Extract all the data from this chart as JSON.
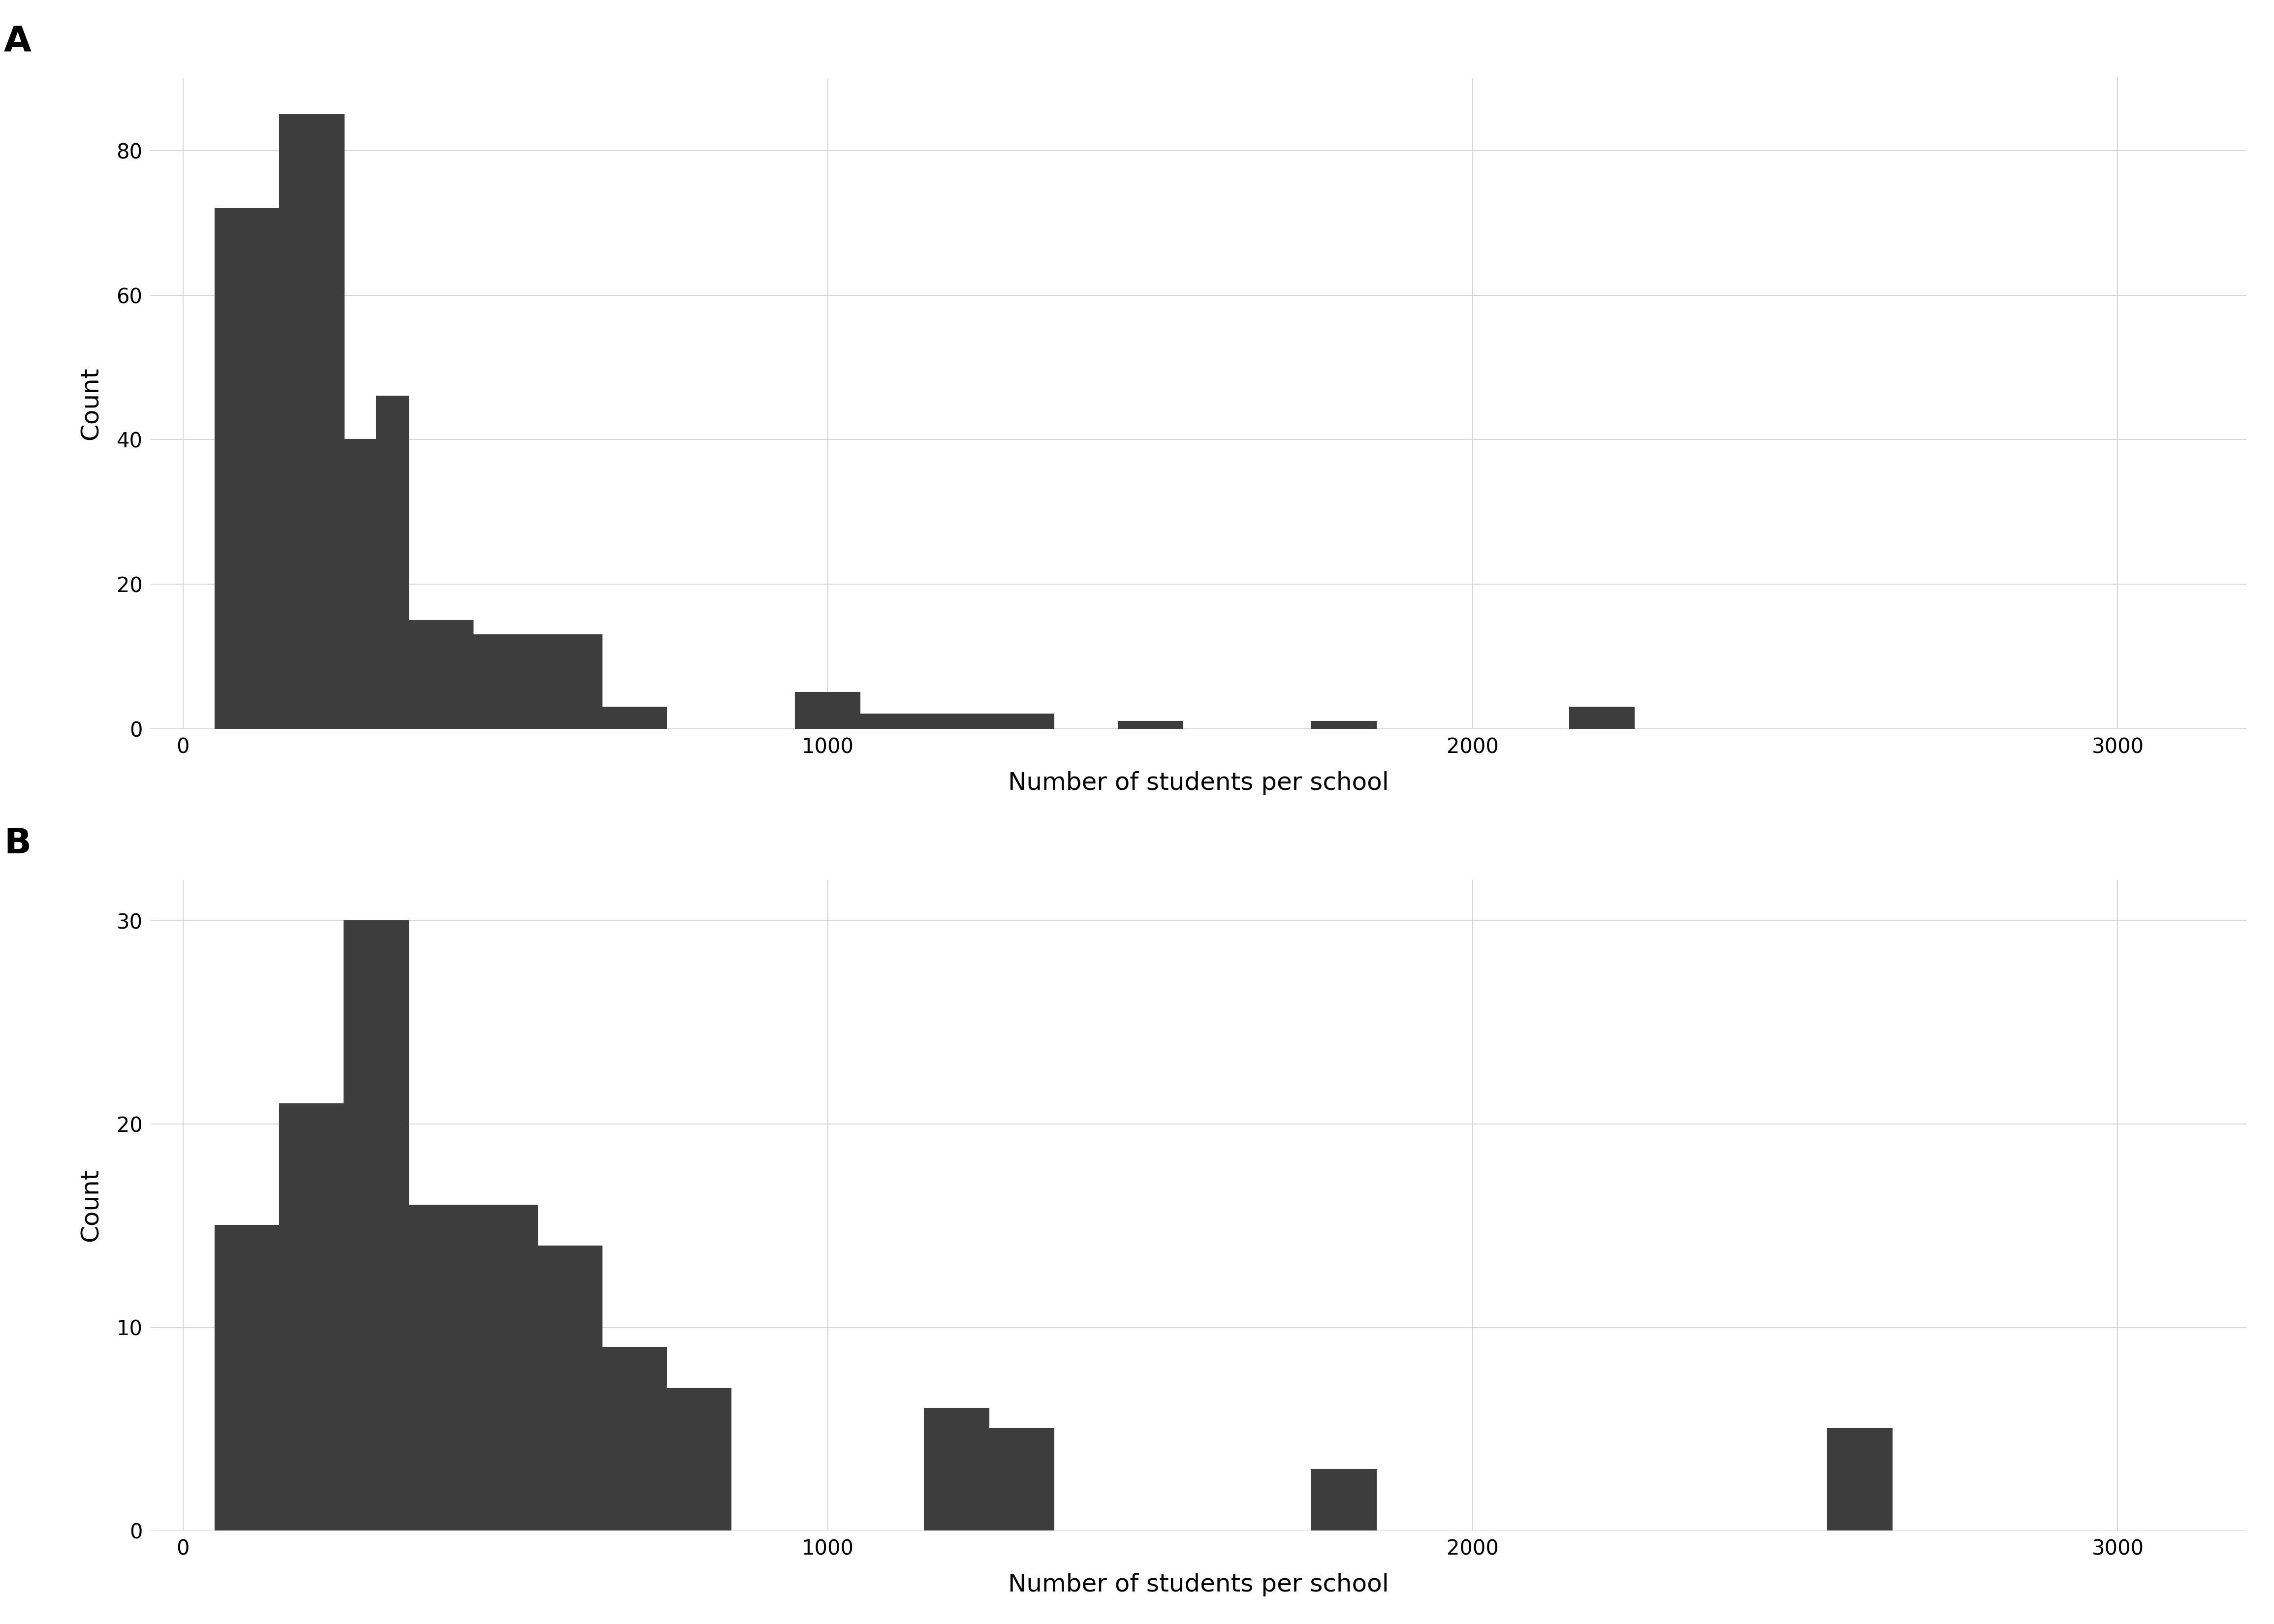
{
  "panel_A": {
    "label": "A",
    "xlabel": "Number of students per school",
    "ylabel": "Count",
    "bar_color": "#3d3d3d",
    "bar_edgecolor": "#ffffff",
    "xlim": [
      -50,
      3200
    ],
    "ylim": [
      0,
      90
    ],
    "xticks": [
      0,
      1000,
      2000,
      3000
    ],
    "yticks": [
      0,
      20,
      40,
      60,
      80
    ],
    "bin_edges": [
      50,
      150,
      250,
      350,
      450,
      550,
      650,
      750,
      850,
      950,
      1050,
      1150,
      1250,
      1350,
      1450,
      1550,
      1650,
      1750,
      1850,
      1950,
      2050,
      2150,
      2250,
      2350,
      2450,
      2550
    ],
    "bin_width": 100,
    "counts": [
      72,
      85,
      40,
      46,
      15,
      13,
      13,
      3,
      0,
      5,
      2,
      2,
      2,
      0,
      1,
      0,
      0,
      1,
      0,
      1,
      0,
      3,
      0,
      0,
      0,
      0
    ]
  },
  "panel_B": {
    "label": "B",
    "xlabel": "Number of students per school",
    "ylabel": "Count",
    "bar_color": "#3d3d3d",
    "bar_edgecolor": "#ffffff",
    "xlim": [
      -50,
      3200
    ],
    "ylim": [
      0,
      32
    ],
    "xticks": [
      0,
      1000,
      2000,
      3000
    ],
    "yticks": [
      0,
      10,
      20,
      30
    ],
    "bin_edges": [
      50,
      150,
      250,
      350,
      450,
      550,
      650,
      750,
      850,
      1150,
      1250,
      1750,
      2550
    ],
    "bin_width": 100,
    "counts": [
      15,
      21,
      30,
      16,
      16,
      14,
      9,
      7,
      0,
      6,
      5,
      3,
      5
    ]
  },
  "background_color": "#ffffff",
  "grid_color": "#d0d0d0",
  "label_fontsize": 36,
  "tick_fontsize": 30,
  "panel_label_fontsize": 52,
  "bar_linewidth": 1.5
}
